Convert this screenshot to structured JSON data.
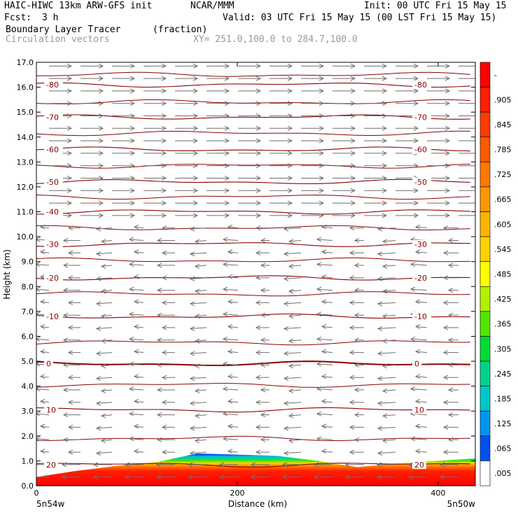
{
  "header": {
    "model": "HAIC-HIWC 13km ARW-GFS init",
    "org": "NCAR/MMM",
    "init": "Init: 00 UTC Fri 15 May 15",
    "fcst_label": "Fcst:",
    "fcst_value": "3 h",
    "valid": "Valid: 03 UTC Fri 15 May 15 (00 LST Fri 15 May 15)",
    "field": "Boundary Layer Tracer",
    "units": "(fraction)",
    "vectors": "Circulation vectors",
    "xsect": "XY= 251.0,100.0 to 284.7,100.0"
  },
  "chart_data": {
    "type": "heatmap",
    "xlabel": "Distance (km)",
    "ylabel": "Height (km)",
    "xlim": [
      0,
      437
    ],
    "ylim": [
      0,
      17
    ],
    "x_ticks": [
      0,
      200,
      400
    ],
    "y_ticks": [
      "0.0",
      "1.0",
      "2.0",
      "3.0",
      "4.0",
      "5.0",
      "6.0",
      "7.0",
      "8.0",
      "9.0",
      "10.0",
      "11.0",
      "12.0",
      "13.0",
      "14.0",
      "15.0",
      "16.0",
      "17.0"
    ],
    "x_end_labels": [
      "5n54w",
      "5n50w"
    ],
    "colorbar": {
      "labels": [
        "-",
        ".905",
        ".845",
        ".785",
        ".725",
        ".665",
        ".605",
        ".545",
        ".485",
        ".425",
        ".365",
        ".305",
        ".245",
        ".185",
        ".125",
        ".065",
        ".005"
      ],
      "colors": [
        "#ff0000",
        "#ff1e00",
        "#ff3c00",
        "#ff5a00",
        "#ff7800",
        "#ff9600",
        "#ffb400",
        "#ffd200",
        "#ffff00",
        "#b4f000",
        "#50e600",
        "#00dc32",
        "#00d28c",
        "#00c8c8",
        "#0096f0",
        "#0050f0",
        "#ffffff"
      ]
    },
    "temperature_contours": [
      {
        "value": 20,
        "height": 0.85,
        "labels": [
          "20",
          "20"
        ]
      },
      {
        "value": 10,
        "height": 3.05,
        "labels": [
          "10",
          "10"
        ]
      },
      {
        "value": 0,
        "height": 4.9,
        "labels": [
          "0",
          "0"
        ]
      },
      {
        "value": -10,
        "height": 6.8,
        "labels": [
          "-10",
          "-10"
        ]
      },
      {
        "value": -20,
        "height": 8.35,
        "labels": [
          "-20",
          "-20"
        ]
      },
      {
        "value": -30,
        "height": 9.7,
        "labels": [
          "-30",
          "-30"
        ]
      },
      {
        "value": -40,
        "height": 11.0,
        "labels": [
          "-40"
        ]
      },
      {
        "value": -50,
        "height": 12.2,
        "labels": [
          "-50",
          "-50"
        ]
      },
      {
        "value": -60,
        "height": 13.5,
        "labels": [
          "-60",
          "-60"
        ]
      },
      {
        "value": -70,
        "height": 14.8,
        "labels": [
          "-70",
          "-70"
        ]
      },
      {
        "value": -80,
        "height": 16.1,
        "labels": [
          "-80",
          "-80"
        ]
      }
    ],
    "extra_contour_heights": [
      1.9,
      4.05,
      5.75,
      7.7,
      9.05,
      10.35,
      11.6,
      12.85,
      14.15,
      15.4,
      16.5
    ],
    "tracer_top_profile": {
      "x_km": [
        0,
        40,
        80,
        120,
        160,
        200,
        240,
        280,
        320,
        360,
        400,
        437
      ],
      "top_km": [
        0.35,
        0.6,
        0.8,
        0.95,
        1.3,
        1.25,
        1.2,
        1.0,
        0.75,
        0.9,
        1.0,
        1.1
      ]
    },
    "wind_regimes": [
      {
        "from_km": 0,
        "to_km": 1.0,
        "direction": "westward"
      },
      {
        "from_km": 1.0,
        "to_km": 10.5,
        "direction": "westward-weak"
      },
      {
        "from_km": 10.5,
        "to_km": 17.0,
        "direction": "eastward"
      }
    ]
  }
}
